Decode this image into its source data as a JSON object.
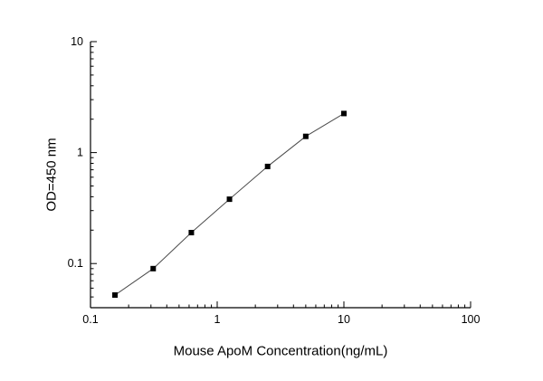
{
  "chart_data": {
    "type": "line",
    "title": "",
    "xlabel": "Mouse ApoM Concentration(ng/mL)",
    "ylabel": "OD=450 nm",
    "xscale": "log",
    "yscale": "log",
    "xlim": [
      0.1,
      100
    ],
    "ylim": [
      0.04,
      10
    ],
    "x": [
      0.156,
      0.3125,
      0.625,
      1.25,
      2.5,
      5,
      10
    ],
    "y": [
      0.052,
      0.09,
      0.19,
      0.38,
      0.75,
      1.4,
      2.25
    ],
    "x_tick_values": [
      0.1,
      1,
      10,
      100
    ],
    "x_tick_labels": [
      "0.1",
      "1",
      "10",
      "100"
    ],
    "y_tick_values": [
      0.1,
      1,
      10
    ],
    "y_tick_labels": [
      "0.1",
      "1",
      "10"
    ],
    "legend": null,
    "grid": "off",
    "marker": "filled-square",
    "marker_color": "#000000",
    "line_color": "#4a4a4a",
    "axis_color": "#000000",
    "background_color": "#ffffff"
  }
}
